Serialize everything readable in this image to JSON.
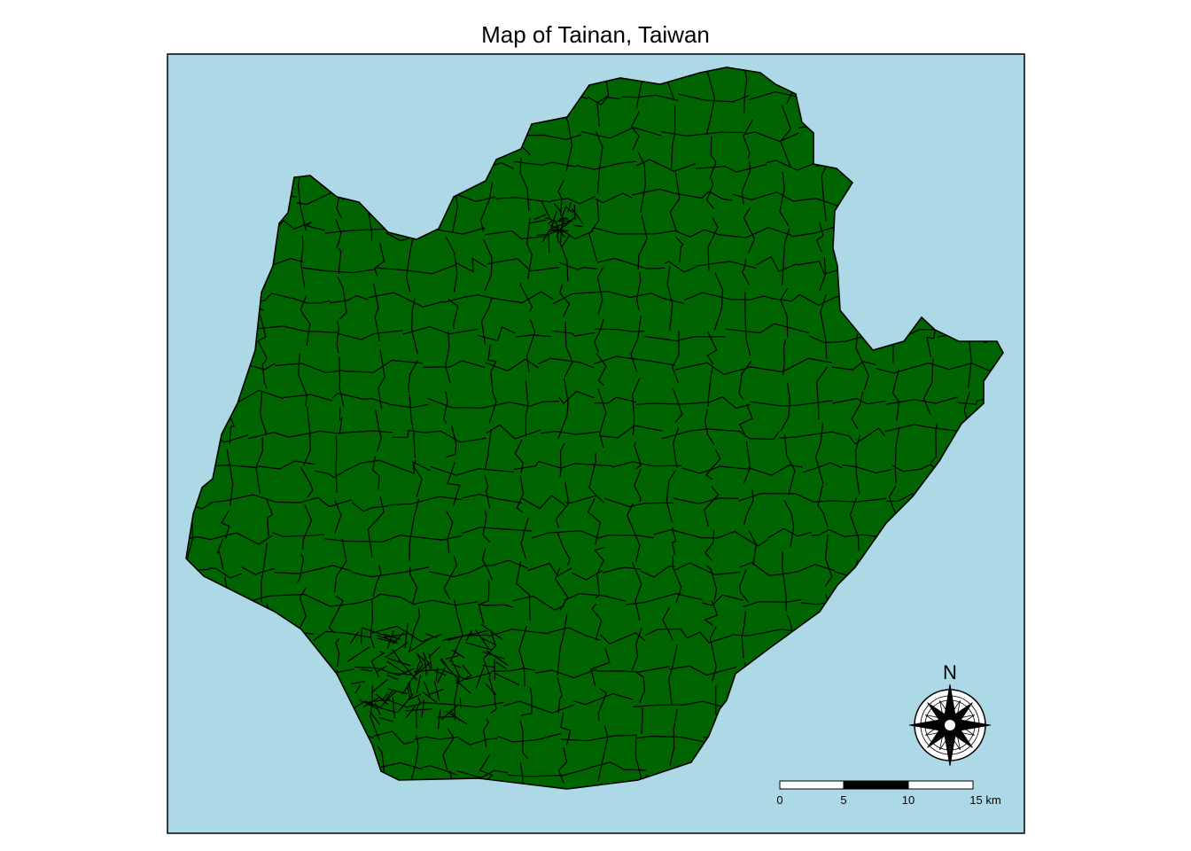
{
  "title": "Map of Tainan, Taiwan",
  "colors": {
    "water": "#add8e6",
    "land": "#006400",
    "border": "#000000"
  },
  "north_arrow": {
    "label": "N"
  },
  "scale_bar": {
    "ticks": [
      "0",
      "5",
      "10",
      "15 km"
    ]
  }
}
